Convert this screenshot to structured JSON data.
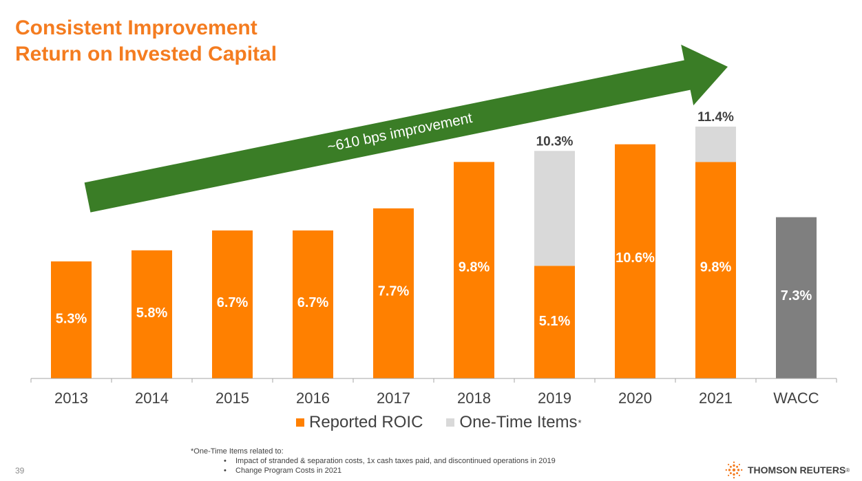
{
  "slide": {
    "title_line1": "Consistent Improvement",
    "title_line2": "Return on Invested Capital",
    "page_number": "39",
    "logo_text": "THOMSON REUTERS",
    "logo_mark": "®"
  },
  "colors": {
    "title": "#f47c20",
    "reported_roic": "#ff8000",
    "one_time_items": "#d9d9d9",
    "wacc": "#7f7f7f",
    "arrow": "#3a7d26"
  },
  "chart_data": {
    "type": "bar",
    "stacked": true,
    "categories": [
      "2013",
      "2014",
      "2015",
      "2016",
      "2017",
      "2018",
      "2019",
      "2020",
      "2021",
      "WACC"
    ],
    "series": [
      {
        "name": "Reported ROIC",
        "values": [
          5.3,
          5.8,
          6.7,
          6.7,
          7.7,
          9.8,
          5.1,
          10.6,
          9.8,
          null
        ]
      },
      {
        "name": "One-Time Items",
        "values": [
          null,
          null,
          null,
          null,
          null,
          null,
          5.2,
          null,
          1.6,
          null
        ]
      }
    ],
    "wacc_value": 7.3,
    "bar_labels": [
      "5.3%",
      "5.8%",
      "6.7%",
      "6.7%",
      "7.7%",
      "9.8%",
      "5.1%",
      "10.6%",
      "9.8%",
      "7.3%"
    ],
    "total_labels": [
      {
        "category": "2019",
        "label": "10.3%",
        "value": 10.3
      },
      {
        "category": "2021",
        "label": "11.4%",
        "value": 11.4
      }
    ],
    "annotation": "~610 bps improvement",
    "ylim": [
      0,
      11.4
    ],
    "grid": false,
    "legend": {
      "position": "bottom",
      "items": [
        {
          "label": "Reported ROIC",
          "suffix": ""
        },
        {
          "label": "One-Time Items",
          "suffix": "*"
        }
      ]
    }
  },
  "footnote": {
    "heading": "*One-Time Items related to:",
    "items": [
      "Impact of stranded & separation costs, 1x cash taxes paid, and discontinued operations in 2019",
      "Change Program Costs in 2021"
    ]
  }
}
